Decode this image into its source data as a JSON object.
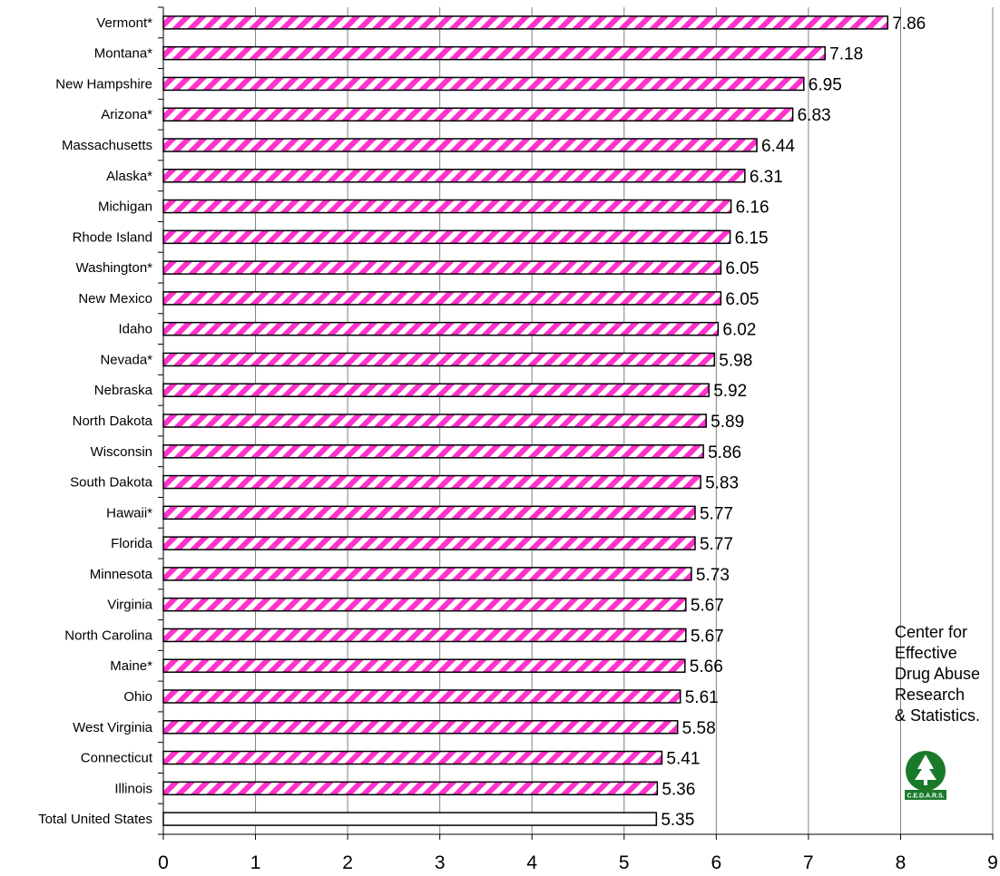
{
  "chart_data": {
    "type": "bar",
    "orientation": "horizontal",
    "categories": [
      "Vermont*",
      "Montana*",
      "New Hampshire",
      "Arizona*",
      "Massachusetts",
      "Alaska*",
      "Michigan",
      "Rhode Island",
      "Washington*",
      "New Mexico",
      "Idaho",
      "Nevada*",
      "Nebraska",
      "North Dakota",
      "Wisconsin",
      "South Dakota",
      "Hawaii*",
      "Florida",
      "Minnesota",
      "Virginia",
      "North Carolina",
      "Maine*",
      "Ohio",
      "West Virginia",
      "Connecticut",
      "Illinois",
      "Total United States"
    ],
    "values": [
      7.86,
      7.18,
      6.95,
      6.83,
      6.44,
      6.31,
      6.16,
      6.15,
      6.05,
      6.05,
      6.02,
      5.98,
      5.92,
      5.89,
      5.86,
      5.83,
      5.77,
      5.77,
      5.73,
      5.67,
      5.67,
      5.66,
      5.61,
      5.58,
      5.41,
      5.36,
      5.35
    ],
    "data_labels": [
      "7.86",
      "7.18",
      "6.95",
      "6.83",
      "6.44",
      "6.31",
      "6.16",
      "6.15",
      "6.05",
      "6.05",
      "6.02",
      "5.98",
      "5.92",
      "5.89",
      "5.86",
      "5.83",
      "5.77",
      "5.77",
      "5.73",
      "5.67",
      "5.67",
      "5.66",
      "5.61",
      "5.58",
      "5.41",
      "5.36",
      "5.35"
    ],
    "highlight": "Total United States",
    "xlim": [
      0,
      9
    ],
    "x_ticks": [
      "0",
      "1",
      "2",
      "3",
      "4",
      "5",
      "6",
      "7",
      "8",
      "9"
    ],
    "grid": "vertical",
    "title": "",
    "xlabel": "",
    "ylabel": "",
    "colors": {
      "bar_pattern": "#ff33cc",
      "bar_base": "#ffffff",
      "outline": "#000000",
      "grid": "#808080",
      "logo": "#1a7a2a"
    }
  },
  "note": {
    "lines": [
      "Center for",
      "Effective",
      "Drug Abuse",
      "Research",
      "& Statistics."
    ]
  },
  "logo": {
    "icon": "tree-icon",
    "label": "C.E.D.A.R.S."
  }
}
